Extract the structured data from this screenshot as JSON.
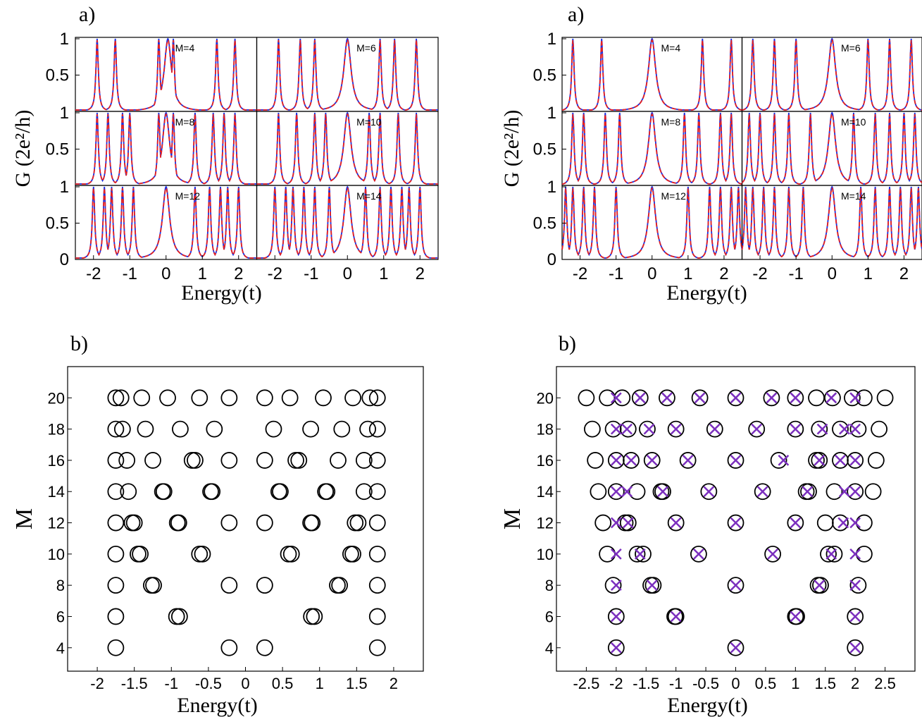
{
  "figure": {
    "panels_top": [
      {
        "id": "top-left",
        "panel_label": "a)",
        "ylabel": "G (2e²/h)",
        "xlabel": "Energy(t)",
        "x_ticks": [
          "-2",
          "-1",
          "0",
          "1",
          "2"
        ],
        "y_ticks": [
          "0",
          "0.5",
          "1"
        ],
        "subplot_labels": [
          "M=4",
          "M=6",
          "M=8",
          "M=10",
          "M=12",
          "M=14"
        ]
      },
      {
        "id": "top-right",
        "panel_label": "a)",
        "ylabel": "G (2e²/h)",
        "xlabel": "Energy(t)",
        "x_ticks": [
          "-2",
          "-1",
          "0",
          "1",
          "2"
        ],
        "y_ticks": [
          "0",
          "0.5",
          "1"
        ],
        "subplot_labels": [
          "M=4",
          "M=6",
          "M=8",
          "M=10",
          "M=12",
          "M=14"
        ]
      }
    ],
    "panels_bottom": [
      {
        "id": "bottom-left",
        "panel_label": "b)",
        "ylabel": "M",
        "xlabel": "Energy(t)",
        "x_ticks": [
          "-2",
          "-1.5",
          "-1",
          "-0.5",
          "0",
          "0.5",
          "1",
          "1.5",
          "2"
        ],
        "y_ticks": [
          "4",
          "6",
          "8",
          "10",
          "12",
          "14",
          "16",
          "18",
          "20"
        ]
      },
      {
        "id": "bottom-right",
        "panel_label": "b)",
        "ylabel": "M",
        "xlabel": "Energy(t)",
        "x_ticks": [
          "-2.5",
          "-2",
          "-1.5",
          "-1",
          "-0.5",
          "0",
          "0.5",
          "1",
          "1.5",
          "2",
          "2.5"
        ],
        "y_ticks": [
          "4",
          "6",
          "8",
          "10",
          "12",
          "14",
          "16",
          "18",
          "20"
        ]
      }
    ]
  },
  "colors": {
    "blue_curve": "#1a2fe0",
    "red_curve": "#e8201e",
    "marker_circle": "#000000",
    "marker_cross": "#7b2fbe"
  },
  "chart_data": [
    {
      "type": "line",
      "panel": "a) left",
      "subplots": [
        {
          "label": "M=4",
          "peaks": [
            -1.9,
            -1.4,
            -0.2,
            0.05,
            0.2,
            1.4,
            1.9
          ],
          "xlim": [
            -2.5,
            2.5
          ],
          "ylim": [
            0,
            1
          ]
        },
        {
          "label": "M=6",
          "peaks": [
            -1.9,
            -1.3,
            -0.9,
            0.0,
            0.9,
            1.3,
            1.9
          ],
          "xlim": [
            -2.5,
            2.5
          ],
          "ylim": [
            0,
            1
          ]
        },
        {
          "label": "M=8",
          "peaks": [
            -1.9,
            -1.6,
            -1.2,
            -1.0,
            -0.2,
            0.0,
            0.2,
            0.8,
            1.3,
            1.6,
            1.9
          ],
          "xlim": [
            -2.5,
            2.5
          ],
          "ylim": [
            0,
            1
          ]
        },
        {
          "label": "M=10",
          "peaks": [
            -1.9,
            -1.4,
            -0.9,
            -0.6,
            0.0,
            0.6,
            0.9,
            1.4,
            1.9
          ],
          "xlim": [
            -2.5,
            2.5
          ],
          "ylim": [
            0,
            1
          ]
        },
        {
          "label": "M=12",
          "peaks": [
            -2.0,
            -1.7,
            -1.5,
            -1.2,
            -0.9,
            0.0,
            0.8,
            1.2,
            1.5,
            1.7,
            2.0
          ],
          "xlim": [
            -2.5,
            2.5
          ],
          "ylim": [
            0,
            1
          ]
        },
        {
          "label": "M=14",
          "peaks": [
            -2.0,
            -1.7,
            -1.5,
            -1.2,
            -0.9,
            -0.5,
            0.0,
            0.5,
            0.9,
            1.2,
            1.5,
            1.7,
            2.0
          ],
          "xlim": [
            -2.5,
            2.5
          ],
          "ylim": [
            0,
            1
          ]
        }
      ],
      "series": [
        {
          "name": "",
          "color": "blue"
        },
        {
          "name": "",
          "color": "red",
          "style": "dashed"
        }
      ]
    },
    {
      "type": "line",
      "panel": "a) right",
      "subplots": [
        {
          "label": "M=4",
          "peaks": [
            -2.2,
            -1.4,
            0.0,
            1.4,
            2.2
          ],
          "xlim": [
            -2.5,
            2.5
          ],
          "ylim": [
            0,
            1
          ]
        },
        {
          "label": "M=6",
          "peaks": [
            -2.2,
            -1.6,
            -1.0,
            0.0,
            1.0,
            1.6,
            2.2
          ],
          "xlim": [
            -2.5,
            2.5
          ],
          "ylim": [
            0,
            1
          ]
        },
        {
          "label": "M=8",
          "peaks": [
            -2.2,
            -1.9,
            -1.3,
            -0.9,
            0.0,
            0.9,
            1.3,
            1.9,
            2.2
          ],
          "xlim": [
            -2.5,
            2.5
          ],
          "ylim": [
            0,
            1
          ]
        },
        {
          "label": "M=10",
          "peaks": [
            -2.3,
            -2.0,
            -1.6,
            -1.2,
            -0.6,
            0.0,
            0.6,
            1.2,
            1.6,
            2.0,
            2.3
          ],
          "xlim": [
            -2.5,
            2.5
          ],
          "ylim": [
            0,
            1
          ]
        },
        {
          "label": "M=12",
          "peaks": [
            -2.4,
            -2.2,
            -1.9,
            -1.6,
            -1.0,
            0.0,
            1.0,
            1.6,
            1.9,
            2.2,
            2.4
          ],
          "xlim": [
            -2.5,
            2.5
          ],
          "ylim": [
            0,
            1
          ]
        },
        {
          "label": "M=14",
          "peaks": [
            -2.4,
            -2.2,
            -1.9,
            -1.6,
            -1.2,
            -0.8,
            0.0,
            0.8,
            1.2,
            1.6,
            1.9,
            2.2,
            2.4
          ],
          "xlim": [
            -2.5,
            2.5
          ],
          "ylim": [
            0,
            1
          ]
        }
      ],
      "series": [
        {
          "name": "",
          "color": "blue"
        },
        {
          "name": "",
          "color": "red",
          "style": "dashed"
        }
      ]
    },
    {
      "type": "scatter",
      "panel": "b) left",
      "xlim": [
        -2.4,
        2.4
      ],
      "ylim": [
        2.5,
        22
      ],
      "circles": [
        {
          "M": 4,
          "E": [
            -1.75,
            -0.22,
            0.26,
            1.78
          ]
        },
        {
          "M": 6,
          "E": [
            -1.75,
            -0.93,
            -0.89,
            0.89,
            0.93,
            1.78
          ]
        },
        {
          "M": 8,
          "E": [
            -1.75,
            -1.27,
            -1.24,
            -0.22,
            0.26,
            1.24,
            1.27,
            1.78
          ]
        },
        {
          "M": 10,
          "E": [
            -1.75,
            -1.45,
            -1.42,
            -0.62,
            -0.58,
            0.58,
            0.62,
            1.42,
            1.45,
            1.78
          ]
        },
        {
          "M": 12,
          "E": [
            -1.75,
            -1.53,
            -1.5,
            -0.92,
            -0.9,
            -0.22,
            0.26,
            0.88,
            0.9,
            1.48,
            1.52,
            1.78
          ]
        },
        {
          "M": 14,
          "E": [
            -1.75,
            -1.58,
            -1.12,
            -1.1,
            -0.47,
            -0.45,
            0.45,
            0.47,
            1.08,
            1.1,
            1.6,
            1.78
          ]
        },
        {
          "M": 16,
          "E": [
            -1.75,
            -1.6,
            -1.25,
            -0.72,
            -0.68,
            -0.22,
            0.26,
            0.68,
            0.72,
            1.25,
            1.6,
            1.78
          ]
        },
        {
          "M": 18,
          "E": [
            -1.75,
            -1.66,
            -1.35,
            -0.88,
            -0.42,
            0.38,
            0.88,
            1.3,
            1.65,
            1.78
          ]
        },
        {
          "M": 20,
          "E": [
            -1.75,
            -1.68,
            -1.4,
            -1.05,
            -0.62,
            -0.22,
            0.26,
            0.6,
            1.05,
            1.45,
            1.68,
            1.78
          ]
        }
      ]
    },
    {
      "type": "scatter",
      "panel": "b) right",
      "xlim": [
        -3.0,
        3.0
      ],
      "ylim": [
        2.5,
        22
      ],
      "circles": [
        {
          "M": 4,
          "E": [
            -2.0,
            0.0,
            2.0
          ]
        },
        {
          "M": 6,
          "E": [
            -2.0,
            -1.02,
            -1.0,
            1.0,
            1.02,
            2.0
          ]
        },
        {
          "M": 8,
          "E": [
            -2.05,
            -1.42,
            -1.38,
            0.0,
            1.38,
            1.42,
            2.05
          ]
        },
        {
          "M": 10,
          "E": [
            -2.15,
            -1.65,
            -1.55,
            -0.62,
            0.62,
            1.55,
            1.65,
            2.15
          ]
        },
        {
          "M": 12,
          "E": [
            -2.22,
            -1.85,
            -1.8,
            -1.0,
            0.0,
            1.0,
            1.5,
            1.75,
            2.15
          ]
        },
        {
          "M": 14,
          "E": [
            -2.3,
            -2.0,
            -1.65,
            -1.25,
            -1.22,
            -0.45,
            0.45,
            1.18,
            1.22,
            1.65,
            2.0,
            2.3
          ]
        },
        {
          "M": 16,
          "E": [
            -2.35,
            -2.0,
            -1.75,
            -1.4,
            -0.8,
            0.0,
            0.72,
            1.35,
            1.4,
            1.75,
            2.0,
            2.35
          ]
        },
        {
          "M": 18,
          "E": [
            -2.4,
            -2.05,
            -1.8,
            -1.48,
            -1.0,
            -0.35,
            0.35,
            1.0,
            1.4,
            1.75,
            2.05,
            2.4
          ]
        },
        {
          "M": 20,
          "E": [
            -2.5,
            -2.15,
            -1.9,
            -1.6,
            -1.15,
            -0.6,
            0.0,
            0.6,
            1.0,
            1.35,
            1.62,
            1.95,
            2.15,
            2.5
          ]
        }
      ],
      "crosses": [
        {
          "M": 4,
          "E": [
            -2.0,
            0.0,
            2.0
          ]
        },
        {
          "M": 6,
          "E": [
            -2.0,
            -1.0,
            1.0,
            2.0
          ]
        },
        {
          "M": 8,
          "E": [
            -2.0,
            -1.4,
            0.0,
            1.4,
            2.0
          ]
        },
        {
          "M": 10,
          "E": [
            -2.0,
            -1.6,
            -0.62,
            0.62,
            1.6,
            2.0
          ]
        },
        {
          "M": 12,
          "E": [
            -2.0,
            -1.8,
            -1.0,
            0.0,
            1.0,
            1.8,
            2.0
          ]
        },
        {
          "M": 14,
          "E": [
            -2.0,
            -1.82,
            -1.22,
            -0.45,
            0.45,
            1.2,
            1.82,
            2.0
          ]
        },
        {
          "M": 16,
          "E": [
            -2.0,
            -1.75,
            -1.4,
            -0.8,
            0.0,
            0.8,
            1.4,
            1.75,
            2.0
          ]
        },
        {
          "M": 18,
          "E": [
            -2.0,
            -1.82,
            -1.45,
            -1.0,
            -0.35,
            0.35,
            1.0,
            1.45,
            1.82,
            2.0
          ]
        },
        {
          "M": 20,
          "E": [
            -2.0,
            -1.6,
            -1.15,
            -0.6,
            0.0,
            0.6,
            1.0,
            1.6,
            2.0
          ]
        }
      ]
    }
  ]
}
